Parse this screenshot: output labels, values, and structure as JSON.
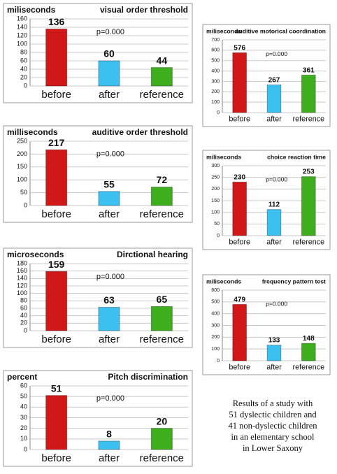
{
  "chart_data": [
    {
      "type": "bar",
      "title": "visual order threshold",
      "y_label": "miliseconds",
      "annotation": "p=0.000",
      "categories": [
        "before",
        "after",
        "reference"
      ],
      "values": [
        136,
        60,
        44
      ],
      "colors": [
        "#d01818",
        "#3cc0f0",
        "#3fae1e"
      ],
      "ylim": [
        0,
        160
      ],
      "yticks": [
        0,
        20,
        40,
        60,
        80,
        100,
        120,
        140,
        160
      ],
      "grid": true
    },
    {
      "type": "bar",
      "title": "auditive order threshold",
      "y_label": "milliseconds",
      "annotation": "p=0.000",
      "categories": [
        "before",
        "after",
        "reference"
      ],
      "values": [
        217,
        55,
        72
      ],
      "colors": [
        "#d01818",
        "#3cc0f0",
        "#3fae1e"
      ],
      "ylim": [
        0,
        250
      ],
      "yticks": [
        0,
        50,
        100,
        150,
        200,
        250
      ],
      "grid": true
    },
    {
      "type": "bar",
      "title": "Dirctional hearing",
      "y_label": "microseconds",
      "annotation": "p=0.000",
      "categories": [
        "before",
        "after",
        "reference"
      ],
      "values": [
        159,
        63,
        65
      ],
      "colors": [
        "#d01818",
        "#3cc0f0",
        "#3fae1e"
      ],
      "ylim": [
        0,
        180
      ],
      "yticks": [
        0,
        20,
        40,
        60,
        80,
        100,
        120,
        140,
        160,
        180
      ],
      "grid": true
    },
    {
      "type": "bar",
      "title": "Pitch discrimination",
      "y_label": "percent",
      "annotation": "p=0.000",
      "categories": [
        "before",
        "after",
        "reference"
      ],
      "values": [
        51,
        8,
        20
      ],
      "colors": [
        "#d01818",
        "#3cc0f0",
        "#3fae1e"
      ],
      "ylim": [
        0,
        60
      ],
      "yticks": [
        0,
        10,
        20,
        30,
        40,
        50,
        60
      ],
      "grid": true
    },
    {
      "type": "bar",
      "title": "auditive motorical coordination",
      "y_label": "miliseconds",
      "annotation": "p=0.000",
      "categories": [
        "before",
        "after",
        "reference"
      ],
      "values": [
        576,
        267,
        361
      ],
      "colors": [
        "#d01818",
        "#3cc0f0",
        "#3fae1e"
      ],
      "ylim": [
        0,
        700
      ],
      "yticks": [
        0,
        100,
        200,
        300,
        400,
        500,
        600,
        700
      ],
      "grid": true
    },
    {
      "type": "bar",
      "title": "choice reaction time",
      "y_label": "miliseconds",
      "annotation": "p=0.000",
      "categories": [
        "before",
        "after",
        "reference"
      ],
      "values": [
        230,
        112,
        253
      ],
      "colors": [
        "#d01818",
        "#3cc0f0",
        "#3fae1e"
      ],
      "ylim": [
        0,
        300
      ],
      "yticks": [
        0,
        50,
        100,
        150,
        200,
        250,
        300
      ],
      "grid": true
    },
    {
      "type": "bar",
      "title": "frequency pattern test",
      "y_label": "miliseconds",
      "annotation": "p=0.000",
      "categories": [
        "before",
        "after",
        "reference"
      ],
      "values": [
        479,
        133,
        148
      ],
      "colors": [
        "#d01818",
        "#3cc0f0",
        "#3fae1e"
      ],
      "ylim": [
        0,
        600
      ],
      "yticks": [
        0,
        100,
        200,
        300,
        400,
        500,
        600
      ],
      "grid": true
    }
  ],
  "caption": [
    "Results of a study with",
    "51 dyslectic children and",
    "41 non-dyslectic children",
    "in an elementary school",
    "in Lower Saxony"
  ]
}
